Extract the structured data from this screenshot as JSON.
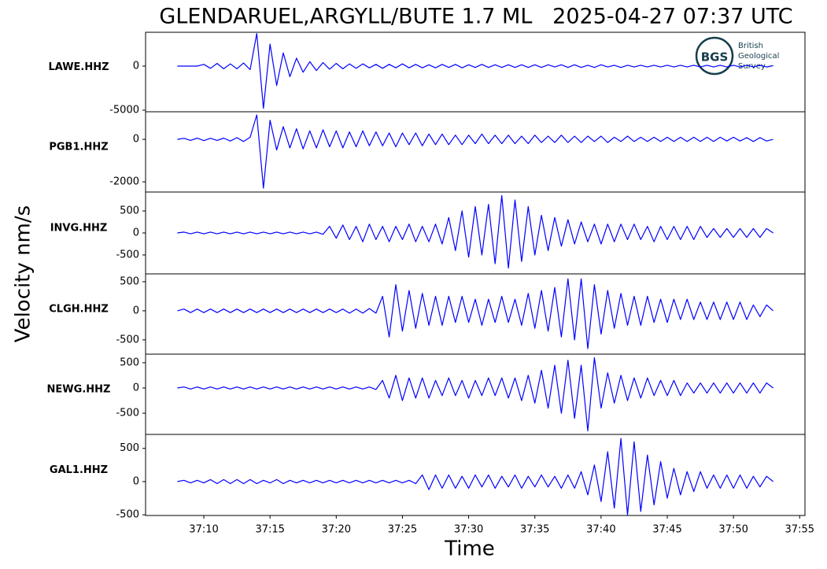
{
  "chart_data": {
    "type": "line",
    "title": "GLENDARUEL,ARGYLL/BUTE 1.7 ML   2025-04-27 07:37 UTC",
    "x_label": "Time",
    "y_label": "Velocity nm/s",
    "color": "#0000ff",
    "xlim": [
      2225.6,
      2275.4
    ],
    "xticks": [
      {
        "value": 2230,
        "label": "37:10"
      },
      {
        "value": 2235,
        "label": "37:15"
      },
      {
        "value": 2240,
        "label": "37:20"
      },
      {
        "value": 2245,
        "label": "37:25"
      },
      {
        "value": 2250,
        "label": "37:30"
      },
      {
        "value": 2255,
        "label": "37:35"
      },
      {
        "value": 2260,
        "label": "37:40"
      },
      {
        "value": 2265,
        "label": "37:45"
      },
      {
        "value": 2270,
        "label": "37:50"
      },
      {
        "value": 2275,
        "label": "37:55"
      }
    ],
    "x": [
      2228,
      2228.5,
      2229,
      2229.5,
      2230,
      2230.5,
      2231,
      2231.5,
      2232,
      2232.5,
      2233,
      2233.5,
      2234,
      2234.5,
      2235,
      2235.5,
      2236,
      2236.5,
      2237,
      2237.5,
      2238,
      2238.5,
      2239,
      2239.5,
      2240,
      2240.5,
      2241,
      2241.5,
      2242,
      2242.5,
      2243,
      2243.5,
      2244,
      2244.5,
      2245,
      2245.5,
      2246,
      2246.5,
      2247,
      2247.5,
      2248,
      2248.5,
      2249,
      2249.5,
      2250,
      2250.5,
      2251,
      2251.5,
      2252,
      2252.5,
      2253,
      2253.5,
      2254,
      2254.5,
      2255,
      2255.5,
      2256,
      2256.5,
      2257,
      2257.5,
      2258,
      2258.5,
      2259,
      2259.5,
      2260,
      2260.5,
      2261,
      2261.5,
      2262,
      2262.5,
      2263,
      2263.5,
      2264,
      2264.5,
      2265,
      2265.5,
      2266,
      2266.5,
      2267,
      2267.5,
      2268,
      2268.5,
      2269,
      2269.5,
      2270,
      2270.5,
      2271,
      2271.5,
      2272,
      2272.5,
      2273
    ],
    "panels": [
      {
        "name": "LAWE.HHZ",
        "ylim": [
          -5180,
          3840
        ],
        "yticks": [
          -5000,
          0
        ],
        "values": [
          0,
          0,
          0,
          0,
          200,
          -250,
          300,
          -300,
          250,
          -300,
          350,
          -400,
          3700,
          -4800,
          2500,
          -2200,
          1500,
          -1200,
          900,
          -700,
          500,
          -500,
          400,
          -350,
          300,
          -300,
          250,
          -250,
          250,
          -200,
          200,
          -250,
          200,
          -200,
          250,
          -200,
          200,
          -200,
          150,
          -200,
          200,
          -150,
          200,
          -200,
          150,
          -150,
          200,
          -150,
          150,
          -150,
          150,
          -150,
          150,
          -150,
          150,
          -150,
          150,
          -100,
          150,
          -150,
          150,
          -150,
          100,
          -150,
          150,
          -100,
          100,
          -150,
          100,
          -100,
          100,
          -100,
          100,
          -100,
          100,
          -100,
          100,
          -100,
          100,
          -100,
          100,
          -100,
          100,
          -100,
          100,
          -100,
          100,
          -100,
          100,
          -100,
          50
        ]
      },
      {
        "name": "PGB1.HHZ",
        "ylim": [
          -2480,
          1300
        ],
        "yticks": [
          -2000,
          0
        ],
        "values": [
          0,
          50,
          -50,
          60,
          -60,
          50,
          -50,
          60,
          -80,
          80,
          -100,
          100,
          1150,
          -2300,
          900,
          -500,
          600,
          -400,
          500,
          -450,
          400,
          -400,
          450,
          -350,
          400,
          -400,
          350,
          -350,
          400,
          -300,
          350,
          -300,
          300,
          -350,
          300,
          -250,
          300,
          -300,
          250,
          -250,
          250,
          -250,
          200,
          -250,
          200,
          -200,
          250,
          -200,
          200,
          -200,
          200,
          -200,
          150,
          -200,
          200,
          -150,
          150,
          -150,
          200,
          -150,
          150,
          -150,
          150,
          -100,
          150,
          -150,
          100,
          -100,
          150,
          -100,
          100,
          -100,
          100,
          -100,
          100,
          -100,
          100,
          -100,
          100,
          -100,
          100,
          -100,
          100,
          -80,
          100,
          -80,
          80,
          -100,
          80,
          -80,
          0
        ]
      },
      {
        "name": "INVG.HHZ",
        "ylim": [
          -930,
          930
        ],
        "yticks": [
          -500,
          0,
          500
        ],
        "values": [
          0,
          20,
          -20,
          20,
          -20,
          20,
          -20,
          20,
          -20,
          20,
          -20,
          20,
          -20,
          20,
          -20,
          20,
          -20,
          20,
          -20,
          20,
          -20,
          20,
          -30,
          150,
          -120,
          180,
          -150,
          150,
          -200,
          200,
          -150,
          150,
          -200,
          150,
          -150,
          200,
          -200,
          150,
          -200,
          200,
          -250,
          350,
          -400,
          500,
          -550,
          600,
          -500,
          650,
          -700,
          850,
          -800,
          750,
          -650,
          600,
          -500,
          400,
          -400,
          350,
          -300,
          300,
          -250,
          250,
          -200,
          200,
          -250,
          200,
          -200,
          200,
          -150,
          200,
          -150,
          150,
          -200,
          150,
          -150,
          150,
          -150,
          150,
          -150,
          150,
          -100,
          100,
          -100,
          100,
          -100,
          100,
          -100,
          100,
          -100,
          100,
          0
        ]
      },
      {
        "name": "CLGH.HHZ",
        "ylim": [
          -745,
          635
        ],
        "yticks": [
          -500,
          0,
          500
        ],
        "values": [
          0,
          30,
          -30,
          30,
          -30,
          30,
          -30,
          30,
          -30,
          30,
          -30,
          30,
          -30,
          30,
          -30,
          30,
          -30,
          30,
          -30,
          30,
          -30,
          30,
          -30,
          30,
          -30,
          30,
          -40,
          30,
          -40,
          40,
          -40,
          250,
          -450,
          450,
          -350,
          350,
          -300,
          300,
          -250,
          250,
          -250,
          250,
          -200,
          250,
          -200,
          200,
          -250,
          200,
          -200,
          250,
          -200,
          200,
          -250,
          300,
          -300,
          350,
          -350,
          400,
          -450,
          550,
          -500,
          550,
          -650,
          450,
          -400,
          350,
          -300,
          300,
          -250,
          250,
          -250,
          250,
          -200,
          200,
          -200,
          200,
          -150,
          200,
          -150,
          150,
          -150,
          150,
          -150,
          150,
          -150,
          150,
          -150,
          100,
          -100,
          100,
          0
        ]
      },
      {
        "name": "NEWG.HHZ",
        "ylim": [
          -920,
          670
        ],
        "yticks": [
          -500,
          0,
          500
        ],
        "values": [
          0,
          20,
          -20,
          20,
          -20,
          20,
          -20,
          20,
          -20,
          20,
          -20,
          20,
          -20,
          20,
          -20,
          20,
          -20,
          20,
          -20,
          20,
          -20,
          20,
          -20,
          20,
          -20,
          20,
          -20,
          20,
          -20,
          20,
          -30,
          150,
          -200,
          250,
          -250,
          200,
          -200,
          200,
          -200,
          150,
          -150,
          200,
          -150,
          150,
          -200,
          150,
          -150,
          200,
          -150,
          200,
          -200,
          200,
          -250,
          250,
          -300,
          350,
          -400,
          450,
          -500,
          550,
          -600,
          450,
          -850,
          600,
          -400,
          300,
          -300,
          250,
          -250,
          200,
          -200,
          200,
          -150,
          150,
          -150,
          150,
          -150,
          100,
          -100,
          100,
          -100,
          100,
          -100,
          100,
          -100,
          100,
          -100,
          100,
          -100,
          100,
          0
        ]
      },
      {
        "name": "GAL1.HHZ",
        "ylim": [
          -510,
          710
        ],
        "yticks": [
          -500,
          0,
          500
        ],
        "values": [
          0,
          20,
          -20,
          20,
          -20,
          30,
          -30,
          30,
          -30,
          30,
          -30,
          30,
          -30,
          20,
          -20,
          30,
          -30,
          20,
          -20,
          20,
          -20,
          20,
          -20,
          20,
          -20,
          20,
          -20,
          20,
          -20,
          20,
          -20,
          20,
          -20,
          20,
          -20,
          20,
          -30,
          100,
          -120,
          100,
          -100,
          100,
          -100,
          80,
          -100,
          100,
          -80,
          100,
          -100,
          80,
          -80,
          100,
          -100,
          80,
          -80,
          100,
          -80,
          80,
          -100,
          100,
          -100,
          150,
          -200,
          250,
          -300,
          450,
          -400,
          650,
          -500,
          600,
          -450,
          400,
          -350,
          300,
          -250,
          200,
          -200,
          150,
          -150,
          150,
          -100,
          100,
          -100,
          100,
          -100,
          100,
          -100,
          80,
          -80,
          80,
          0
        ]
      }
    ]
  },
  "logo": {
    "abbr": "BGS",
    "lines": [
      "British",
      "Geological",
      "Survey"
    ]
  }
}
